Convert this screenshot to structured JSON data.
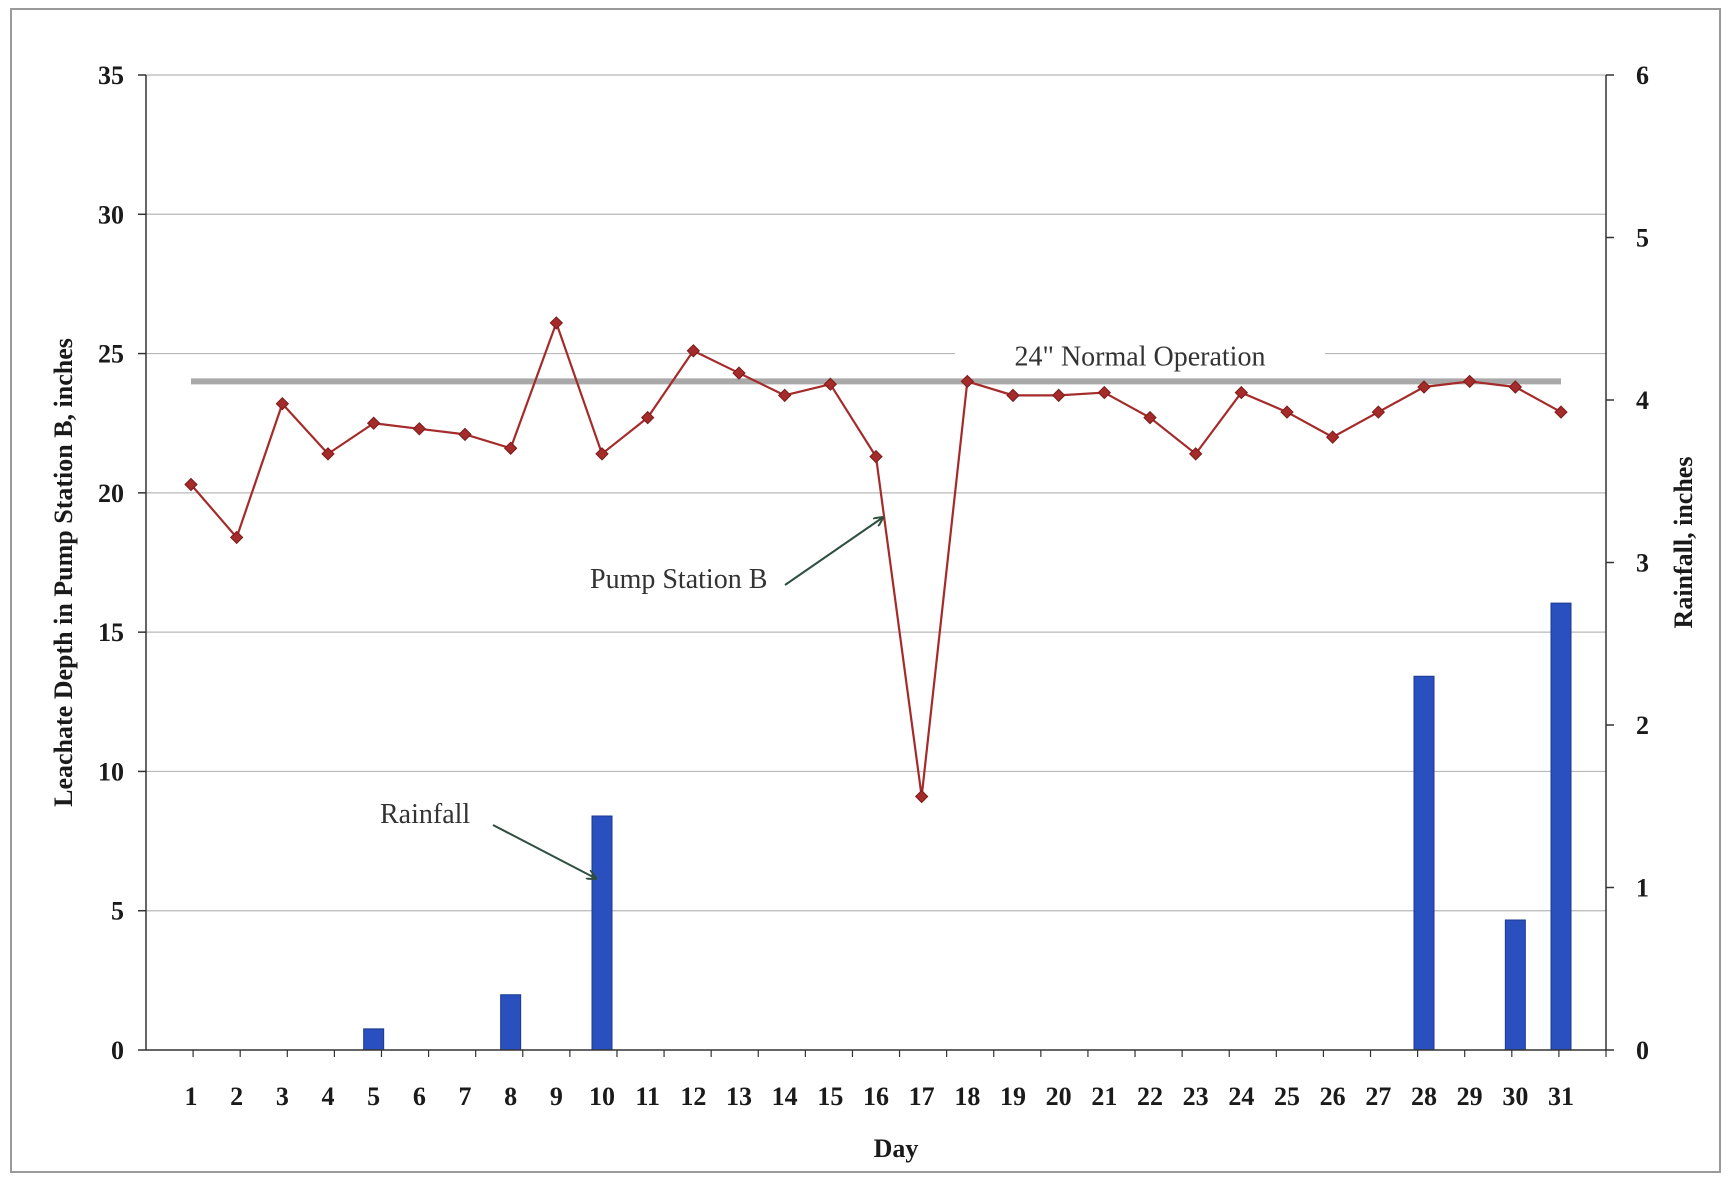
{
  "chart_data": {
    "type": "bar+line",
    "title": "",
    "xlabel": "Day",
    "ylabel": "Leachate Depth in Pump Station B, inches",
    "y2label": "Rainfall, inches",
    "categories": [
      "1",
      "2",
      "3",
      "4",
      "5",
      "6",
      "7",
      "8",
      "9",
      "10",
      "11",
      "12",
      "13",
      "14",
      "15",
      "16",
      "17",
      "18",
      "19",
      "20",
      "21",
      "22",
      "23",
      "24",
      "25",
      "26",
      "27",
      "28",
      "29",
      "30",
      "31"
    ],
    "ylim": [
      0,
      35
    ],
    "yticks": [
      0,
      5,
      10,
      15,
      20,
      25,
      30,
      35
    ],
    "y2lim": [
      0,
      6
    ],
    "y2ticks": [
      0,
      1,
      2,
      3,
      4,
      5,
      6
    ],
    "grid": true,
    "series": [
      {
        "name": "Pump Station B",
        "kind": "line",
        "axis": "left",
        "color": "#a52a2a",
        "values": [
          20.3,
          18.4,
          23.2,
          21.4,
          22.5,
          22.3,
          22.1,
          21.6,
          26.1,
          21.4,
          22.7,
          25.1,
          24.3,
          23.5,
          23.9,
          21.3,
          9.1,
          24.0,
          23.5,
          23.5,
          23.6,
          22.7,
          21.4,
          23.6,
          22.9,
          22.0,
          22.9,
          23.8,
          24.0,
          23.8,
          22.9
        ]
      },
      {
        "name": "Rainfall",
        "kind": "bar",
        "axis": "right",
        "color": "#2a4fbf",
        "values": [
          0,
          0,
          0,
          0,
          0.13,
          0,
          0,
          0.34,
          0,
          1.44,
          0,
          0,
          0,
          0,
          0,
          0,
          0,
          0,
          0,
          0,
          0,
          0,
          0,
          0,
          0,
          0,
          0,
          2.3,
          0,
          0.8,
          2.75
        ]
      }
    ],
    "reference_line": {
      "label": "24\" Normal Operation",
      "value": 24,
      "color": "#a9a9a9"
    },
    "annotations": [
      {
        "text": "Pump Station B"
      },
      {
        "text": "Rainfall"
      }
    ]
  }
}
